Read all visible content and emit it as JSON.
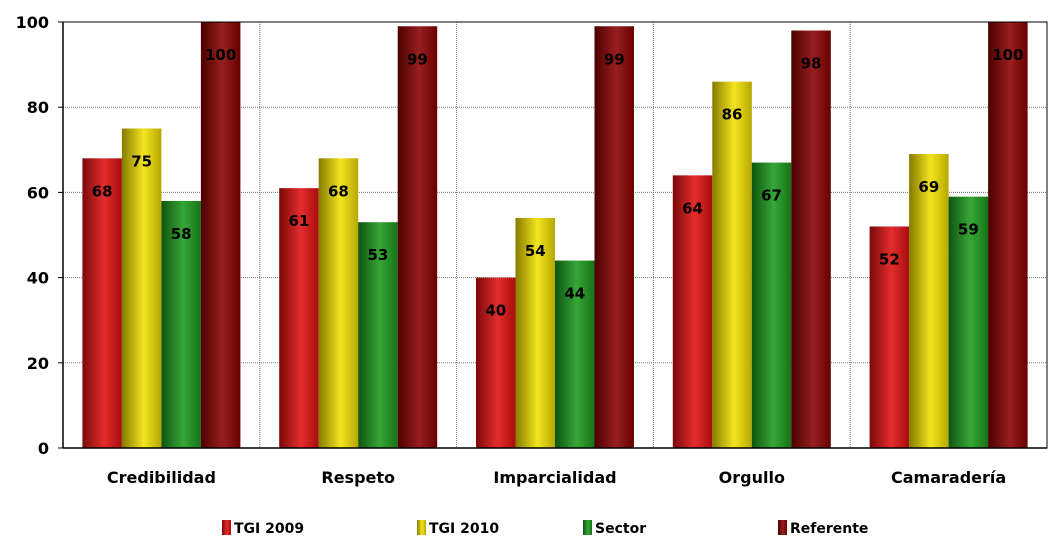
{
  "chart_data": {
    "type": "bar",
    "categories": [
      "Credibilidad",
      "Respeto",
      "Imparcialidad",
      "Orgullo",
      "Camaradería"
    ],
    "series": [
      {
        "name": "TGI 2009",
        "values": [
          68,
          61,
          40,
          64,
          52
        ],
        "color": "#e01010"
      },
      {
        "name": "TGI 2010",
        "values": [
          75,
          68,
          54,
          86,
          69
        ],
        "color": "#f2e000"
      },
      {
        "name": "Sector",
        "values": [
          58,
          53,
          44,
          67,
          59
        ],
        "color": "#1c9a1c"
      },
      {
        "name": "Referente",
        "values": [
          100,
          99,
          99,
          98,
          100
        ],
        "color": "#8a0000"
      }
    ],
    "yticks": [
      "0",
      "20",
      "40",
      "60",
      "80",
      "100"
    ],
    "ylim": [
      0,
      100
    ],
    "grid": true,
    "legend": "bottom"
  }
}
